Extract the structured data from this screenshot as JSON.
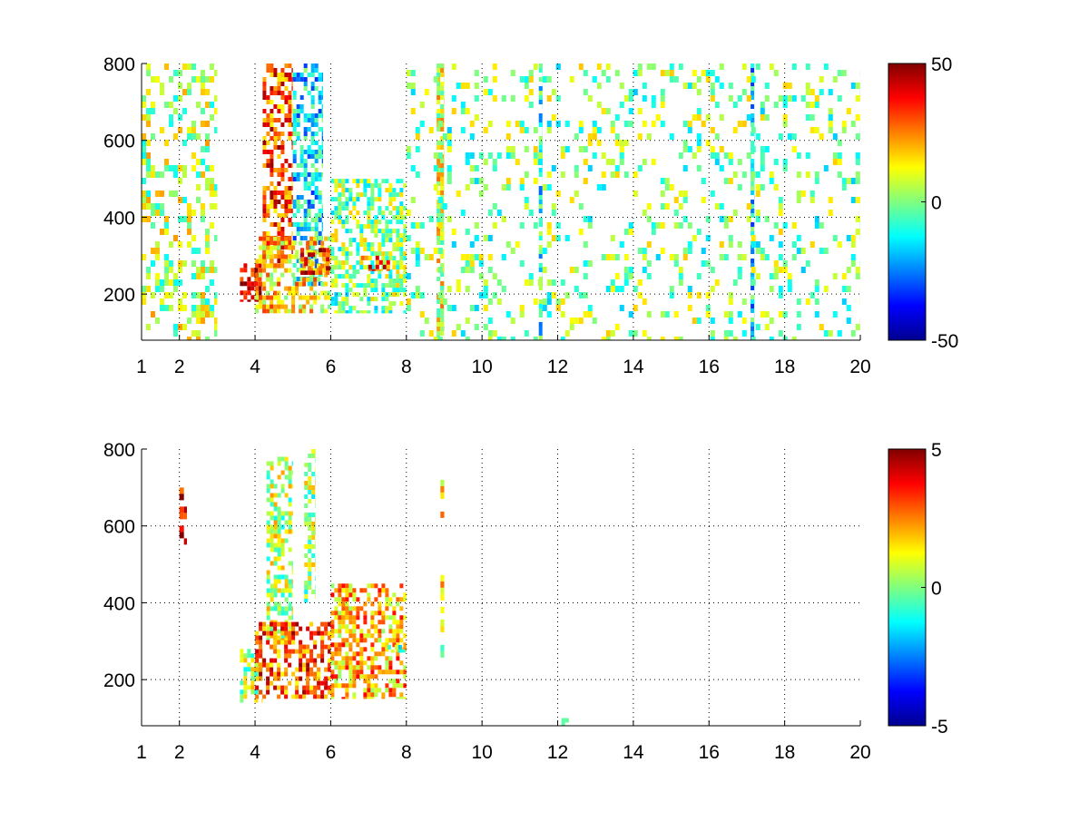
{
  "chart_data": [
    {
      "type": "heatmap",
      "title": "",
      "xlabel": "",
      "ylabel": "",
      "xlim": [
        1,
        20
      ],
      "ylim": [
        80,
        800
      ],
      "x_ticks": [
        1,
        2,
        4,
        6,
        8,
        10,
        12,
        14,
        16,
        18,
        20
      ],
      "y_ticks": [
        200,
        400,
        600,
        800
      ],
      "grid": true,
      "colormap": "jet",
      "clim": [
        -50,
        50
      ],
      "colorbar_ticks": [
        -50,
        0,
        50
      ],
      "features": [
        {
          "x": [
            1.0,
            3.0
          ],
          "y": [
            80,
            800
          ],
          "value": 5,
          "kind": "dense thin vertical streaks"
        },
        {
          "x": [
            3.6,
            4.2
          ],
          "y": [
            180,
            280
          ],
          "value": 40,
          "kind": "curved ridge"
        },
        {
          "x": [
            4.2,
            5.0
          ],
          "y": [
            280,
            800
          ],
          "value": 30,
          "kind": "rising ridge"
        },
        {
          "x": [
            5.0,
            5.8
          ],
          "y": [
            220,
            800
          ],
          "value": -15,
          "kind": "rising ridge"
        },
        {
          "x": [
            4.0,
            6.0
          ],
          "y": [
            150,
            350
          ],
          "value": 15,
          "kind": "blob"
        },
        {
          "x": [
            5.2,
            6.0
          ],
          "y": [
            250,
            320
          ],
          "value": 35,
          "kind": "hot spot"
        },
        {
          "x": [
            6.0,
            8.0
          ],
          "y": [
            150,
            500
          ],
          "value": 0,
          "kind": "mixed blob"
        },
        {
          "x": [
            6.8,
            7.6
          ],
          "y": [
            260,
            300
          ],
          "value": 30,
          "kind": "hot spot"
        },
        {
          "x": [
            8.8,
            9.0
          ],
          "y": [
            80,
            800
          ],
          "value": 10,
          "kind": "vertical line"
        },
        {
          "x": [
            11.5,
            11.6
          ],
          "y": [
            80,
            800
          ],
          "value": -10,
          "kind": "vertical line"
        },
        {
          "x": [
            17.1,
            17.2
          ],
          "y": [
            80,
            800
          ],
          "value": -15,
          "kind": "vertical line"
        },
        {
          "x": [
            8.0,
            20.0
          ],
          "y": [
            80,
            800
          ],
          "value": 0,
          "kind": "sparse scattered cells"
        }
      ]
    },
    {
      "type": "heatmap",
      "title": "",
      "xlabel": "",
      "ylabel": "",
      "xlim": [
        1,
        20
      ],
      "ylim": [
        80,
        800
      ],
      "x_ticks": [
        1,
        2,
        4,
        6,
        8,
        10,
        12,
        14,
        16,
        18,
        20
      ],
      "y_ticks": [
        200,
        400,
        600,
        800
      ],
      "grid": true,
      "colormap": "jet",
      "clim": [
        -5,
        5
      ],
      "colorbar_ticks": [
        -5,
        0,
        5
      ],
      "features": [
        {
          "x": [
            3.6,
            4.2
          ],
          "y": [
            140,
            280
          ],
          "value": 0.5,
          "kind": "blob"
        },
        {
          "x": [
            4.3,
            5.0
          ],
          "y": [
            300,
            780
          ],
          "value": 0.5,
          "kind": "rising band"
        },
        {
          "x": [
            5.3,
            5.6
          ],
          "y": [
            400,
            800
          ],
          "value": 0.3,
          "kind": "rising band"
        },
        {
          "x": [
            4.0,
            6.0
          ],
          "y": [
            150,
            350
          ],
          "value": 3,
          "kind": "blob"
        },
        {
          "x": [
            6.0,
            8.0
          ],
          "y": [
            150,
            450
          ],
          "value": 2,
          "kind": "mixed blob"
        },
        {
          "x": [
            7.5,
            8.0
          ],
          "y": [
            270,
            290
          ],
          "value": 0,
          "kind": "tail"
        },
        {
          "x": [
            8.9,
            9.0
          ],
          "y": [
            250,
            720
          ],
          "value": 1,
          "kind": "sparse vertical line"
        },
        {
          "x": [
            2.0,
            2.2
          ],
          "y": [
            550,
            700
          ],
          "value": 4,
          "kind": "sparse vertical line"
        },
        {
          "x": [
            12.1,
            12.3
          ],
          "y": [
            80,
            100
          ],
          "value": 0.5,
          "kind": "spot"
        }
      ]
    }
  ]
}
